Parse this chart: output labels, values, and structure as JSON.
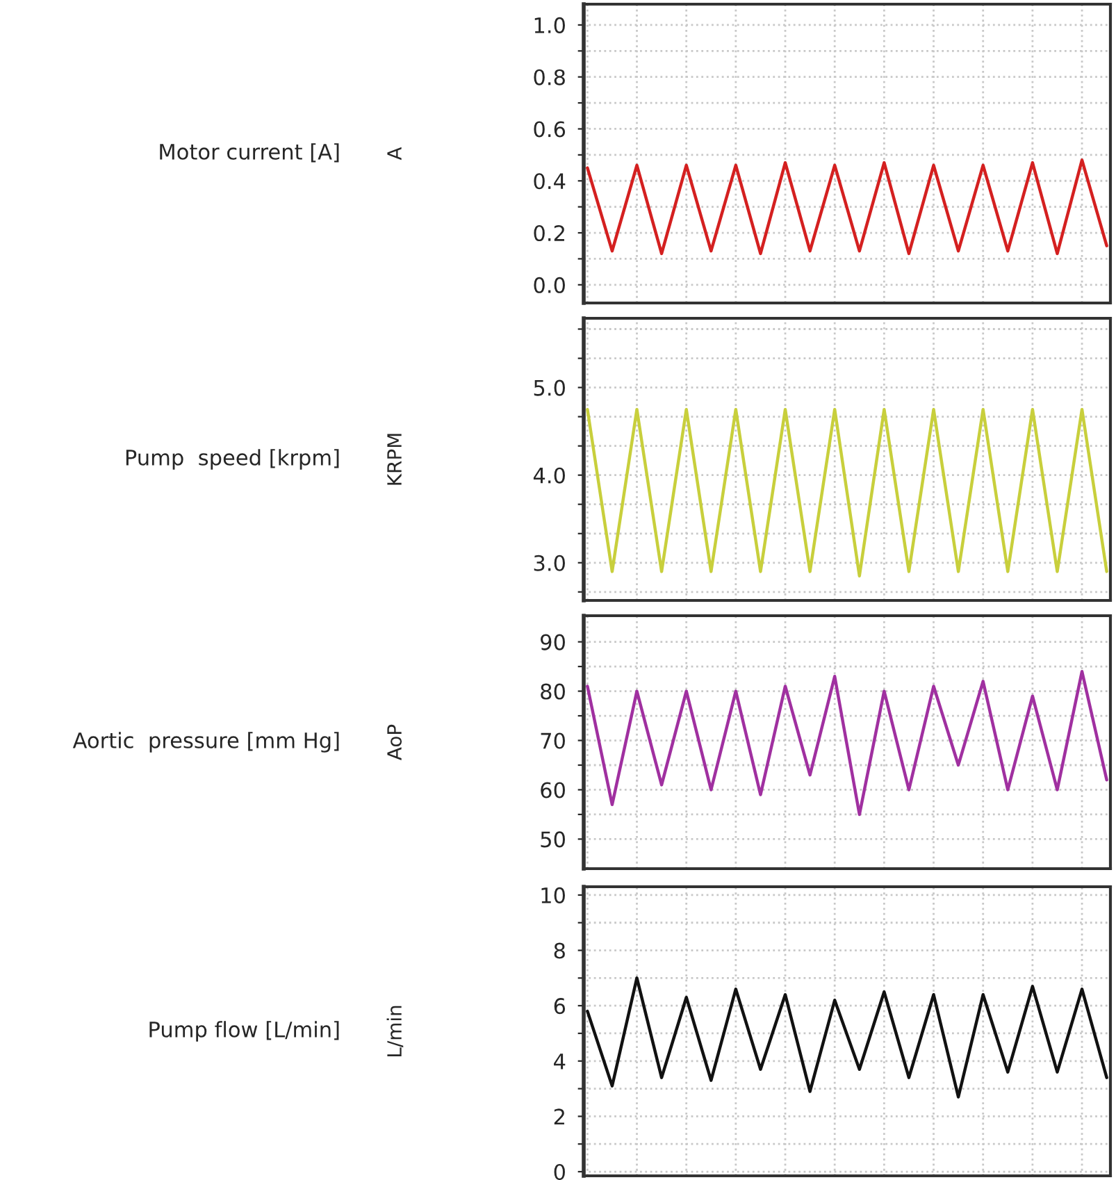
{
  "chart_data": [
    {
      "type": "line",
      "ylabel": "Motor current [A]",
      "annotations": [
        "A"
      ],
      "categories": [
        null,
        null,
        null,
        null,
        null,
        null,
        null,
        null,
        null,
        null,
        null,
        null,
        null,
        null,
        null,
        null,
        null,
        null,
        null,
        null,
        null,
        null
      ],
      "series": [
        {
          "color": "#d42020",
          "values": [
            0.45,
            0.13,
            0.46,
            0.12,
            0.46,
            0.13,
            0.46,
            0.12,
            0.47,
            0.13,
            0.46,
            0.13,
            0.47,
            0.12,
            0.46,
            0.13,
            0.46,
            0.13,
            0.47,
            0.12,
            0.48,
            0.15
          ]
        }
      ],
      "ylim": [
        -0.07,
        1.08
      ],
      "yticks": [
        {
          "value": 0,
          "label": "0.0"
        },
        {
          "value": 0.1,
          "label": null
        },
        {
          "value": 0.2,
          "label": "0.2"
        },
        {
          "value": 0.3,
          "label": null
        },
        {
          "value": 0.4,
          "label": "0.4"
        },
        {
          "value": 0.5,
          "label": null
        },
        {
          "value": 0.6,
          "label": "0.6"
        },
        {
          "value": 0.7,
          "label": null
        },
        {
          "value": 0.8,
          "label": "0.8"
        },
        {
          "value": 0.9,
          "label": null
        },
        {
          "value": 1,
          "label": "1.0"
        }
      ],
      "grid": true,
      "tick_labels": "y"
    },
    {
      "type": "line",
      "ylabel": "Pump  speed [krpm]",
      "annotations": [
        "KRPM"
      ],
      "categories": [
        null,
        null,
        null,
        null,
        null,
        null,
        null,
        null,
        null,
        null,
        null,
        null,
        null,
        null,
        null,
        null,
        null,
        null,
        null,
        null,
        null,
        null
      ],
      "series": [
        {
          "color": "#c8cf3c",
          "values": [
            4.75,
            2.9,
            4.75,
            2.9,
            4.75,
            2.9,
            4.75,
            2.9,
            4.75,
            2.9,
            4.75,
            2.85,
            4.75,
            2.9,
            4.75,
            2.9,
            4.75,
            2.9,
            4.75,
            2.9,
            4.75,
            2.9
          ]
        }
      ],
      "ylim": [
        2.57,
        5.79
      ],
      "yticks": [
        {
          "value": 2.667,
          "label": null
        },
        {
          "value": 3,
          "label": "3.0"
        },
        {
          "value": 3.333,
          "label": null
        },
        {
          "value": 3.667,
          "label": null
        },
        {
          "value": 4,
          "label": "4.0"
        },
        {
          "value": 4.333,
          "label": null
        },
        {
          "value": 4.667,
          "label": null
        },
        {
          "value": 5,
          "label": "5.0"
        },
        {
          "value": 5.333,
          "label": null
        },
        {
          "value": 5.667,
          "label": null
        }
      ],
      "grid": true,
      "tick_labels": "y"
    },
    {
      "type": "line",
      "ylabel": "Aortic  pressure [mm Hg]",
      "annotations": [
        "AoP"
      ],
      "categories": [
        null,
        null,
        null,
        null,
        null,
        null,
        null,
        null,
        null,
        null,
        null,
        null,
        null,
        null,
        null,
        null,
        null,
        null,
        null,
        null,
        null,
        null
      ],
      "series": [
        {
          "color": "#a030a0",
          "values": [
            81,
            57,
            80,
            61,
            80,
            60,
            80,
            59,
            81,
            63,
            83,
            55,
            80,
            60,
            81,
            65,
            82,
            60,
            79,
            60,
            84,
            62
          ]
        }
      ],
      "ylim": [
        44,
        95.3
      ],
      "yticks": [
        {
          "value": 50,
          "label": "50"
        },
        {
          "value": 55,
          "label": null
        },
        {
          "value": 60,
          "label": "60"
        },
        {
          "value": 65,
          "label": null
        },
        {
          "value": 70,
          "label": "70"
        },
        {
          "value": 75,
          "label": null
        },
        {
          "value": 80,
          "label": "80"
        },
        {
          "value": 85,
          "label": null
        },
        {
          "value": 90,
          "label": "90"
        }
      ],
      "grid": true,
      "tick_labels": "y"
    },
    {
      "type": "line",
      "ylabel": "Pump flow [L/min]",
      "annotations": [
        "L/min"
      ],
      "categories": [
        null,
        null,
        null,
        null,
        null,
        null,
        null,
        null,
        null,
        null,
        null,
        null,
        null,
        null,
        null,
        null,
        null,
        null,
        null,
        null,
        null,
        null
      ],
      "series": [
        {
          "color": "#111111",
          "values": [
            5.8,
            3.1,
            7.0,
            3.4,
            6.3,
            3.3,
            6.6,
            3.7,
            6.4,
            2.9,
            6.2,
            3.7,
            6.5,
            3.4,
            6.4,
            2.7,
            6.4,
            3.6,
            6.7,
            3.6,
            6.6,
            3.4
          ]
        }
      ],
      "ylim": [
        -0.15,
        10.3
      ],
      "yticks": [
        {
          "value": 0,
          "label": "0"
        },
        {
          "value": 1,
          "label": null
        },
        {
          "value": 2,
          "label": "2"
        },
        {
          "value": 3,
          "label": null
        },
        {
          "value": 4,
          "label": "4"
        },
        {
          "value": 5,
          "label": null
        },
        {
          "value": 6,
          "label": "6"
        },
        {
          "value": 7,
          "label": null
        },
        {
          "value": 8,
          "label": "8"
        },
        {
          "value": 9,
          "label": null
        },
        {
          "value": 10,
          "label": "10"
        }
      ],
      "grid": true,
      "tick_labels": "y"
    }
  ]
}
